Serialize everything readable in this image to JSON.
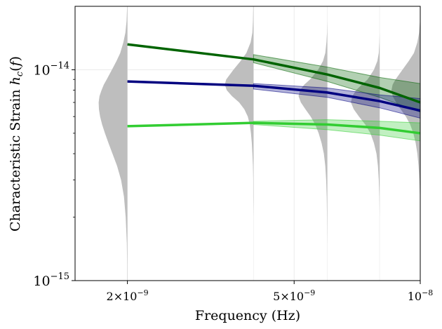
{
  "chart_data": {
    "type": "line",
    "title": "",
    "xlabel": "Frequency (Hz)",
    "ylabel": "Characteristic Strain h_c(f)",
    "xscale": "log",
    "yscale": "log",
    "xlim": [
      1.5e-09,
      1e-08
    ],
    "ylim": [
      1e-15,
      2e-14
    ],
    "x_ticks": [
      {
        "value": 2e-09,
        "mantissa": "2",
        "times": "×",
        "base": "10",
        "exp": "−9"
      },
      {
        "value": 5e-09,
        "mantissa": "5",
        "times": "×",
        "base": "10",
        "exp": "−9"
      },
      {
        "value": 1e-08,
        "mantissa": "",
        "times": "",
        "base": "10",
        "exp": "−8"
      }
    ],
    "y_ticks": [
      {
        "value": 1e-15,
        "base": "10",
        "exp": "−15"
      },
      {
        "value": 1e-14,
        "base": "10",
        "exp": "−14"
      }
    ],
    "grid": true,
    "x": [
      2e-09,
      4e-09,
      6e-09,
      8e-09,
      1e-08
    ],
    "series": [
      {
        "name": "dark-green-model",
        "color": "#006400",
        "values": [
          1.32e-14,
          1.12e-14,
          9.5e-15,
          8.2e-15,
          7e-15
        ],
        "band": {
          "x": [
            4e-09,
            6e-09,
            8e-09,
            1e-08
          ],
          "lower": [
            1.08e-14,
            8.8e-15,
            7.4e-15,
            6.3e-15
          ],
          "upper": [
            1.18e-14,
            1.03e-14,
            9.2e-15,
            8.6e-15
          ]
        }
      },
      {
        "name": "navy-model",
        "color": "#000080",
        "values": [
          8.8e-15,
          8.4e-15,
          7.8e-15,
          7.1e-15,
          6.4e-15
        ],
        "band": {
          "x": [
            4e-09,
            6e-09,
            8e-09,
            1e-08
          ],
          "lower": [
            8.1e-15,
            7.4e-15,
            6.6e-15,
            5.9e-15
          ],
          "upper": [
            8.6e-15,
            8.2e-15,
            7.6e-15,
            7.3e-15
          ]
        }
      },
      {
        "name": "lime-green-model",
        "color": "#32cd32",
        "values": [
          5.4e-15,
          5.6e-15,
          5.5e-15,
          5.3e-15,
          5e-15
        ],
        "band": {
          "x": [
            4e-09,
            6e-09,
            8e-09,
            1e-08
          ],
          "lower": [
            5.5e-15,
            5.2e-15,
            4.9e-15,
            4.6e-15
          ],
          "upper": [
            5.7e-15,
            5.8e-15,
            5.7e-15,
            5.6e-15
          ]
        }
      }
    ],
    "violins": {
      "color": "#bebebe",
      "y_grid": [
        1e-15,
        1.2e-15,
        1.5e-15,
        2e-15,
        2.5e-15,
        3e-15,
        3.5e-15,
        4e-15,
        4.5e-15,
        5e-15,
        5.5e-15,
        6e-15,
        6.5e-15,
        7e-15,
        7.5e-15,
        8e-15,
        8.5e-15,
        9e-15,
        1e-14,
        1.1e-14,
        1.2e-14,
        1.35e-14,
        1.5e-14,
        1.7e-14,
        2e-14
      ],
      "items": [
        {
          "f": 2e-09,
          "widths": [
            0.01,
            0.01,
            0.02,
            0.06,
            0.12,
            0.22,
            0.36,
            0.52,
            0.66,
            0.78,
            0.88,
            0.95,
            0.99,
            1.0,
            0.97,
            0.9,
            0.82,
            0.72,
            0.54,
            0.38,
            0.25,
            0.14,
            0.07,
            0.03,
            0.01
          ]
        },
        {
          "f": 4e-09,
          "widths": [
            0.0,
            0.0,
            0.0,
            0.0,
            0.01,
            0.01,
            0.02,
            0.04,
            0.06,
            0.09,
            0.13,
            0.2,
            0.32,
            0.5,
            0.75,
            0.93,
            1.0,
            0.95,
            0.7,
            0.45,
            0.25,
            0.1,
            0.04,
            0.02,
            0.01
          ]
        },
        {
          "f": 6e-09,
          "widths": [
            0.0,
            0.0,
            0.0,
            0.01,
            0.02,
            0.04,
            0.07,
            0.12,
            0.2,
            0.3,
            0.42,
            0.58,
            0.76,
            0.92,
            1.0,
            0.95,
            0.8,
            0.6,
            0.32,
            0.15,
            0.07,
            0.03,
            0.01,
            0.0,
            0.0
          ]
        },
        {
          "f": 8e-09,
          "widths": [
            0.0,
            0.0,
            0.0,
            0.0,
            0.01,
            0.03,
            0.06,
            0.11,
            0.2,
            0.32,
            0.5,
            0.72,
            0.9,
            1.0,
            0.95,
            0.82,
            0.62,
            0.42,
            0.2,
            0.08,
            0.03,
            0.01,
            0.0,
            0.0,
            0.0
          ]
        },
        {
          "f": 1e-08,
          "widths": [
            0.0,
            0.0,
            0.0,
            0.0,
            0.01,
            0.03,
            0.06,
            0.1,
            0.16,
            0.24,
            0.35,
            0.5,
            0.68,
            0.84,
            0.96,
            1.0,
            0.96,
            0.86,
            0.62,
            0.4,
            0.22,
            0.1,
            0.04,
            0.01,
            0.0
          ]
        }
      ]
    }
  }
}
